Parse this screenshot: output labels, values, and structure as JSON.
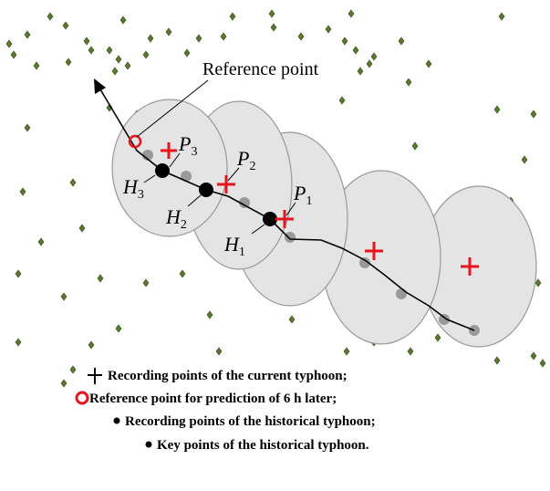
{
  "annotation": "Reference point",
  "labels": [
    {
      "main": "P",
      "sub": "3"
    },
    {
      "main": "P",
      "sub": "2"
    },
    {
      "main": "P",
      "sub": "1"
    },
    {
      "main": "H",
      "sub": "3"
    },
    {
      "main": "H",
      "sub": "2"
    },
    {
      "main": "H",
      "sub": "1"
    }
  ],
  "legend": [
    "Recording points of the current typhoon;",
    "Reference point for prediction of 6 h later;",
    "Recording points of the historical typhoon;",
    "Key points of the historical typhoon."
  ]
}
